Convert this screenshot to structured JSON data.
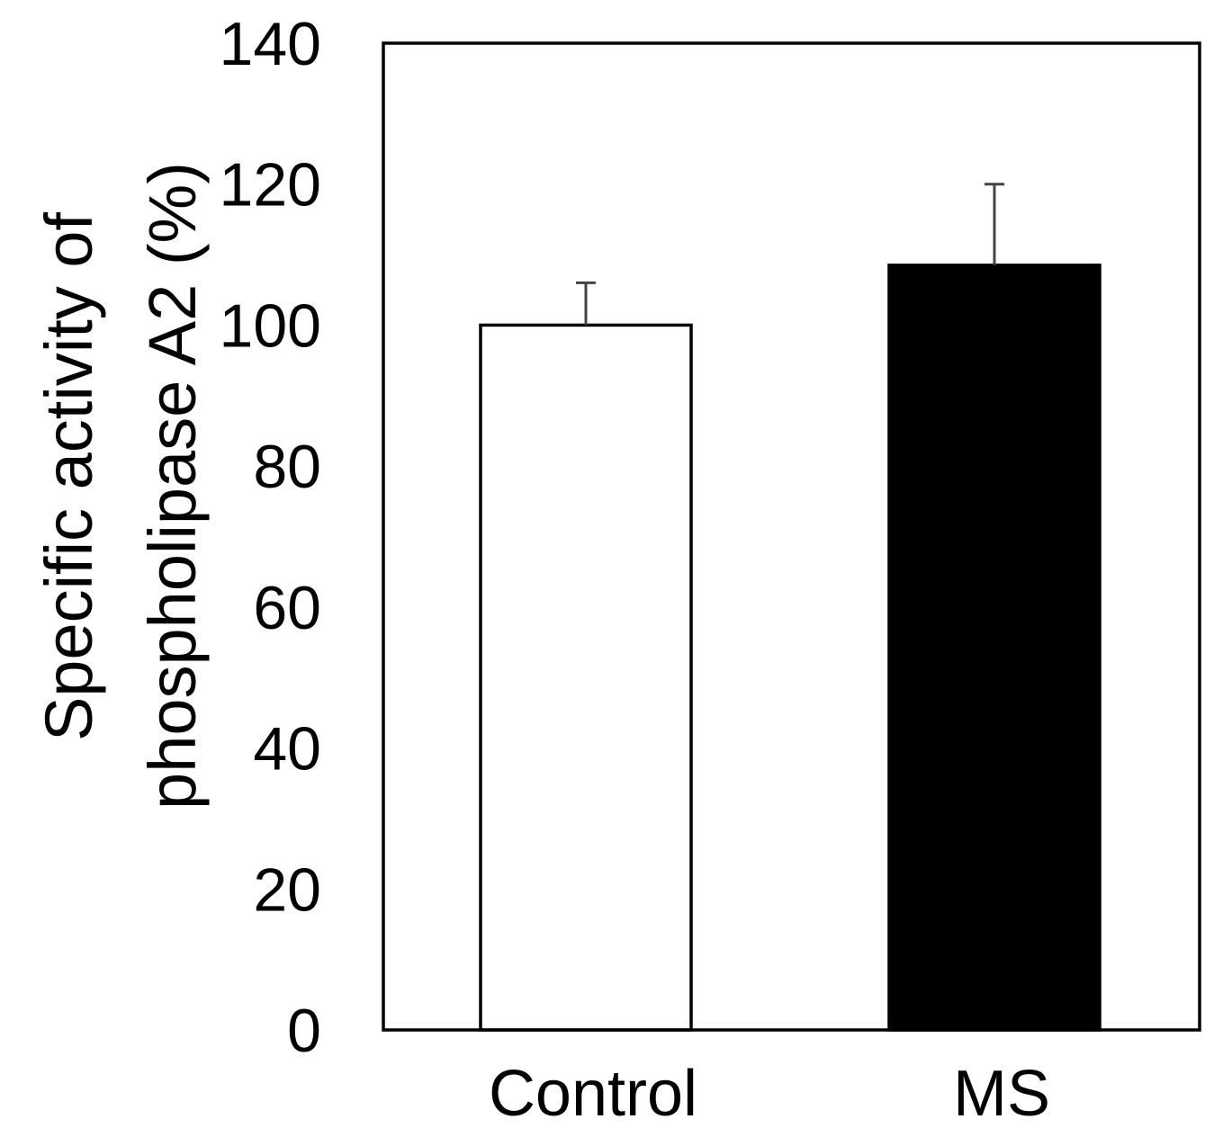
{
  "chart_data": {
    "type": "bar",
    "categories": [
      "Control",
      "MS"
    ],
    "values": [
      100,
      108.5
    ],
    "errors": [
      6,
      11.5
    ],
    "bar_colors": [
      "#ffffff",
      "#000000"
    ],
    "ylabel_lines": [
      "Specific activity of",
      "phospholipase A2 (%)"
    ],
    "xlabel": "",
    "title": "",
    "ylim": [
      0,
      140
    ],
    "yticks": [
      0,
      20,
      40,
      60,
      80,
      100,
      120,
      140
    ],
    "grid": false,
    "legend": "none"
  }
}
